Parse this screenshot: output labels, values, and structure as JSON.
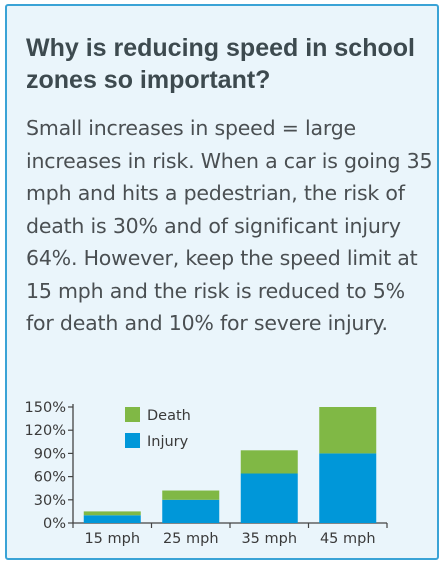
{
  "title": "Why is reducing speed in school zones so important?",
  "body": "Small increases in speed = large increases in risk. When a car is going 35 mph and hits a pedestrian, the risk of death is 30% and of significant injury 64%. However, keep the speed limit at 15 mph and the risk is reduced to 5% for death and 10% for severe injury.",
  "colors": {
    "death": "#80b845",
    "injury": "#0097d9",
    "border": "#3aa3d6",
    "panel": "#eaf5fb"
  },
  "chart_data": {
    "type": "bar",
    "stacked": true,
    "title": "",
    "xlabel": "",
    "ylabel": "",
    "categories": [
      "15 mph",
      "25 mph",
      "35 mph",
      "45 mph"
    ],
    "series": [
      {
        "name": "Injury",
        "values": [
          10,
          30,
          64,
          90
        ],
        "color": "#0097d9"
      },
      {
        "name": "Death",
        "values": [
          5,
          12,
          30,
          60
        ],
        "color": "#80b845"
      }
    ],
    "yticks": [
      "0%",
      "30%",
      "60%",
      "90%",
      "120%",
      "150%"
    ],
    "ylim": [
      0,
      150
    ],
    "grid": false,
    "legend": "top-left"
  }
}
